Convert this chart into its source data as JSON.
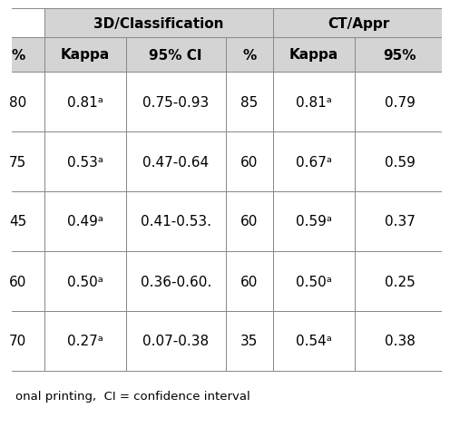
{
  "header_row1_labels": [
    "3D/Classification",
    "CT/Appr"
  ],
  "header_row2": [
    "%",
    "Kappa",
    "95% CI",
    "%",
    "Kappa",
    "95%"
  ],
  "rows": [
    [
      "80",
      "0.81ᵃ",
      "0.75-0.93",
      "85",
      "0.81ᵃ",
      "0.79"
    ],
    [
      "75",
      "0.53ᵃ",
      "0.47-0.64",
      "60",
      "0.67ᵃ",
      "0.59"
    ],
    [
      "45",
      "0.49ᵃ",
      "0.41-0.53.",
      "60",
      "0.59ᵃ",
      "0.37"
    ],
    [
      "60",
      "0.50ᵃ",
      "0.36-0.60.",
      "60",
      "0.50ᵃ",
      "0.25"
    ],
    [
      "70",
      "0.27ᵃ",
      "0.07-0.38",
      "35",
      "0.54ᵃ",
      "0.38"
    ]
  ],
  "footer": "onal printing,  CI = confidence interval",
  "bg_color": "#ffffff",
  "header_bg": "#d4d4d4",
  "border_color": "#888888",
  "text_color": "#000000",
  "font_size": 11,
  "header_font_size": 11
}
